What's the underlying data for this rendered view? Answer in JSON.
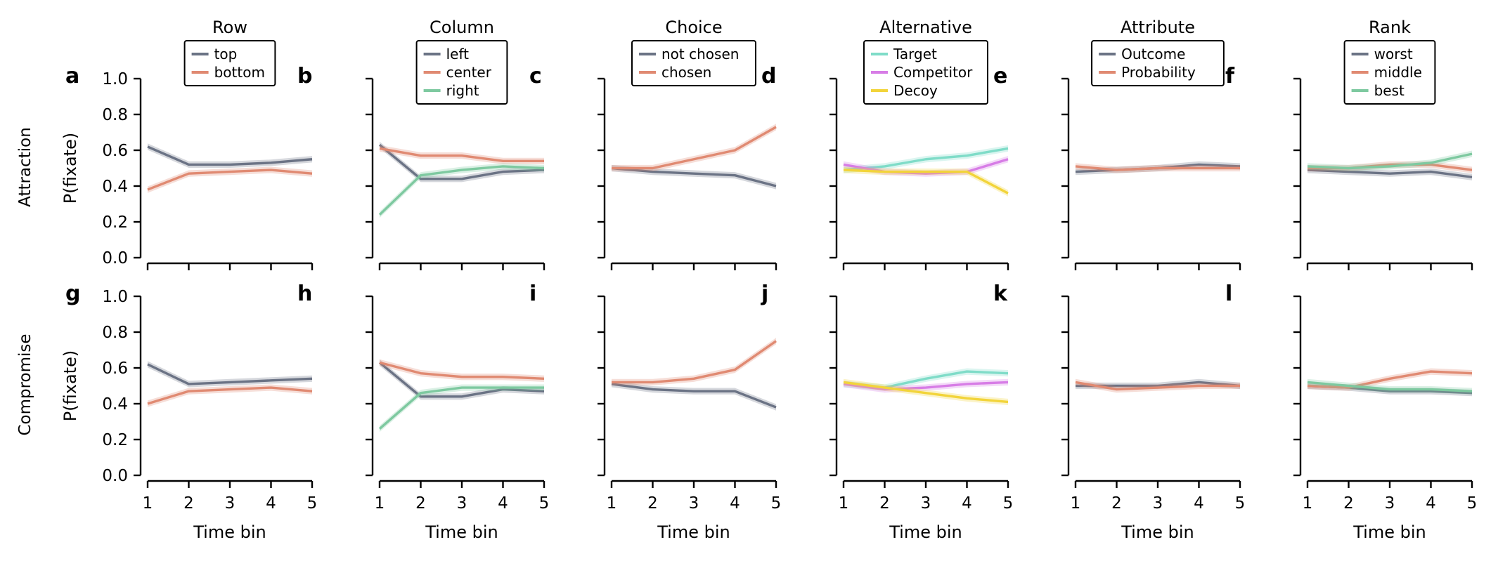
{
  "row_labels": [
    "Attraction",
    "Compromise"
  ],
  "chart_data": [
    {
      "type": "line",
      "panel": "a",
      "title": "Row",
      "xlabel": "",
      "ylabel": "P(fixate)",
      "x": [
        1,
        2,
        3,
        4,
        5
      ],
      "ylim": [
        0,
        1
      ],
      "yticks": [
        "0.0",
        "0.2",
        "0.4",
        "0.6",
        "0.8",
        "1.0"
      ],
      "legend": "top-center",
      "series": [
        {
          "name": "top",
          "color": "#6b7385",
          "values": [
            0.62,
            0.52,
            0.52,
            0.53,
            0.55
          ]
        },
        {
          "name": "bottom",
          "color": "#e08a72",
          "values": [
            0.38,
            0.47,
            0.48,
            0.49,
            0.47
          ]
        }
      ]
    },
    {
      "type": "line",
      "panel": "b",
      "title": "Column",
      "xlabel": "",
      "ylabel": "",
      "x": [
        1,
        2,
        3,
        4,
        5
      ],
      "ylim": [
        0,
        1
      ],
      "legend": "top-center",
      "series": [
        {
          "name": "left",
          "color": "#6b7385",
          "values": [
            0.63,
            0.44,
            0.44,
            0.48,
            0.49
          ]
        },
        {
          "name": "center",
          "color": "#e08a72",
          "values": [
            0.61,
            0.57,
            0.57,
            0.54,
            0.54
          ]
        },
        {
          "name": "right",
          "color": "#7ec9a0",
          "values": [
            0.24,
            0.46,
            0.49,
            0.51,
            0.5
          ]
        }
      ]
    },
    {
      "type": "line",
      "panel": "c",
      "title": "Choice",
      "xlabel": "",
      "ylabel": "",
      "x": [
        1,
        2,
        3,
        4,
        5
      ],
      "ylim": [
        0,
        1
      ],
      "legend": "top-center",
      "series": [
        {
          "name": "not chosen",
          "color": "#6b7385",
          "values": [
            0.5,
            0.48,
            0.47,
            0.46,
            0.4
          ]
        },
        {
          "name": "chosen",
          "color": "#e08a72",
          "values": [
            0.5,
            0.5,
            0.55,
            0.6,
            0.73
          ]
        }
      ]
    },
    {
      "type": "line",
      "panel": "d",
      "title": "Alternative",
      "xlabel": "",
      "ylabel": "",
      "x": [
        1,
        2,
        3,
        4,
        5
      ],
      "ylim": [
        0,
        1
      ],
      "legend": "top-center",
      "series": [
        {
          "name": "Target",
          "color": "#7fdcc8",
          "values": [
            0.49,
            0.51,
            0.55,
            0.57,
            0.61
          ]
        },
        {
          "name": "Competitor",
          "color": "#d77de6",
          "values": [
            0.52,
            0.48,
            0.47,
            0.48,
            0.55
          ]
        },
        {
          "name": "Decoy",
          "color": "#f2d43a",
          "values": [
            0.49,
            0.48,
            0.48,
            0.48,
            0.36
          ]
        }
      ]
    },
    {
      "type": "line",
      "panel": "e",
      "title": "Attribute",
      "xlabel": "",
      "ylabel": "",
      "x": [
        1,
        2,
        3,
        4,
        5
      ],
      "ylim": [
        0,
        1
      ],
      "legend": "top-center",
      "series": [
        {
          "name": "Outcome",
          "color": "#6b7385",
          "values": [
            0.48,
            0.49,
            0.5,
            0.52,
            0.51
          ]
        },
        {
          "name": "Probability",
          "color": "#e08a72",
          "values": [
            0.51,
            0.49,
            0.5,
            0.5,
            0.5
          ]
        }
      ]
    },
    {
      "type": "line",
      "panel": "f",
      "title": "Rank",
      "xlabel": "",
      "ylabel": "",
      "x": [
        1,
        2,
        3,
        4,
        5
      ],
      "ylim": [
        0,
        1
      ],
      "legend": "top-center",
      "series": [
        {
          "name": "worst",
          "color": "#6b7385",
          "values": [
            0.49,
            0.48,
            0.47,
            0.48,
            0.45
          ]
        },
        {
          "name": "middle",
          "color": "#e08a72",
          "values": [
            0.5,
            0.5,
            0.52,
            0.52,
            0.49
          ]
        },
        {
          "name": "best",
          "color": "#7ec9a0",
          "values": [
            0.51,
            0.5,
            0.51,
            0.53,
            0.58
          ]
        }
      ]
    },
    {
      "type": "line",
      "panel": "g",
      "title": "",
      "xlabel": "Time bin",
      "ylabel": "P(fixate)",
      "x": [
        1,
        2,
        3,
        4,
        5
      ],
      "ylim": [
        0,
        1
      ],
      "yticks": [
        "0.0",
        "0.2",
        "0.4",
        "0.6",
        "0.8",
        "1.0"
      ],
      "xticks": [
        "1",
        "2",
        "3",
        "4",
        "5"
      ],
      "series": [
        {
          "name": "top",
          "color": "#6b7385",
          "values": [
            0.62,
            0.51,
            0.52,
            0.53,
            0.54
          ]
        },
        {
          "name": "bottom",
          "color": "#e08a72",
          "values": [
            0.4,
            0.47,
            0.48,
            0.49,
            0.47
          ]
        }
      ]
    },
    {
      "type": "line",
      "panel": "h",
      "title": "",
      "xlabel": "Time bin",
      "ylabel": "",
      "x": [
        1,
        2,
        3,
        4,
        5
      ],
      "ylim": [
        0,
        1
      ],
      "xticks": [
        "1",
        "2",
        "3",
        "4",
        "5"
      ],
      "series": [
        {
          "name": "left",
          "color": "#6b7385",
          "values": [
            0.63,
            0.44,
            0.44,
            0.48,
            0.47
          ]
        },
        {
          "name": "center",
          "color": "#e08a72",
          "values": [
            0.63,
            0.57,
            0.55,
            0.55,
            0.54
          ]
        },
        {
          "name": "right",
          "color": "#7ec9a0",
          "values": [
            0.26,
            0.46,
            0.49,
            0.49,
            0.49
          ]
        }
      ]
    },
    {
      "type": "line",
      "panel": "i",
      "title": "",
      "xlabel": "Time bin",
      "ylabel": "",
      "x": [
        1,
        2,
        3,
        4,
        5
      ],
      "ylim": [
        0,
        1
      ],
      "xticks": [
        "1",
        "2",
        "3",
        "4",
        "5"
      ],
      "series": [
        {
          "name": "not chosen",
          "color": "#6b7385",
          "values": [
            0.51,
            0.48,
            0.47,
            0.47,
            0.38
          ]
        },
        {
          "name": "chosen",
          "color": "#e08a72",
          "values": [
            0.52,
            0.52,
            0.54,
            0.59,
            0.75
          ]
        }
      ]
    },
    {
      "type": "line",
      "panel": "j",
      "title": "",
      "xlabel": "Time bin",
      "ylabel": "",
      "x": [
        1,
        2,
        3,
        4,
        5
      ],
      "ylim": [
        0,
        1
      ],
      "xticks": [
        "1",
        "2",
        "3",
        "4",
        "5"
      ],
      "series": [
        {
          "name": "Target",
          "color": "#7fdcc8",
          "values": [
            0.51,
            0.49,
            0.54,
            0.58,
            0.57
          ]
        },
        {
          "name": "Competitor",
          "color": "#d77de6",
          "values": [
            0.51,
            0.48,
            0.49,
            0.51,
            0.52
          ]
        },
        {
          "name": "Decoy",
          "color": "#f2d43a",
          "values": [
            0.52,
            0.49,
            0.46,
            0.43,
            0.41
          ]
        }
      ]
    },
    {
      "type": "line",
      "panel": "k",
      "title": "",
      "xlabel": "Time bin",
      "ylabel": "",
      "x": [
        1,
        2,
        3,
        4,
        5
      ],
      "ylim": [
        0,
        1
      ],
      "xticks": [
        "1",
        "2",
        "3",
        "4",
        "5"
      ],
      "series": [
        {
          "name": "Outcome",
          "color": "#6b7385",
          "values": [
            0.5,
            0.5,
            0.5,
            0.52,
            0.5
          ]
        },
        {
          "name": "Probability",
          "color": "#e08a72",
          "values": [
            0.52,
            0.48,
            0.49,
            0.5,
            0.5
          ]
        }
      ]
    },
    {
      "type": "line",
      "panel": "l",
      "title": "",
      "xlabel": "Time bin",
      "ylabel": "",
      "x": [
        1,
        2,
        3,
        4,
        5
      ],
      "ylim": [
        0,
        1
      ],
      "xticks": [
        "1",
        "2",
        "3",
        "4",
        "5"
      ],
      "series": [
        {
          "name": "worst",
          "color": "#6b7385",
          "values": [
            0.5,
            0.49,
            0.47,
            0.47,
            0.46
          ]
        },
        {
          "name": "middle",
          "color": "#e08a72",
          "values": [
            0.5,
            0.49,
            0.54,
            0.58,
            0.57
          ]
        },
        {
          "name": "best",
          "color": "#7ec9a0",
          "values": [
            0.52,
            0.5,
            0.48,
            0.48,
            0.47
          ]
        }
      ]
    }
  ]
}
